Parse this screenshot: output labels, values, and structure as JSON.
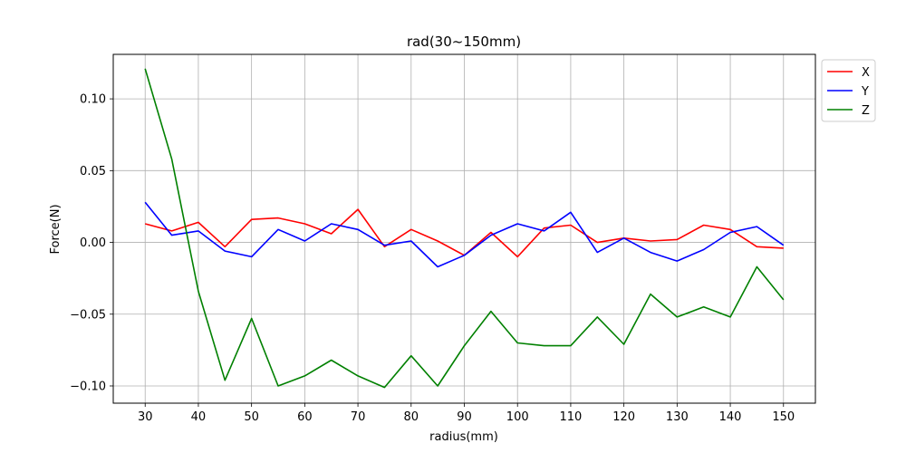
{
  "chart_data": {
    "type": "line",
    "title": "rad(30~150mm)",
    "xlabel": "radius(mm)",
    "ylabel": "Force(N)",
    "xlim": [
      24,
      156
    ],
    "ylim": [
      -0.112,
      0.131
    ],
    "xticks": [
      30,
      40,
      50,
      60,
      70,
      80,
      90,
      100,
      110,
      120,
      130,
      140,
      150
    ],
    "yticks": [
      -0.1,
      -0.05,
      0.0,
      0.05,
      0.1
    ],
    "ytick_labels": [
      "−0.10",
      "−0.05",
      "0.00",
      "0.05",
      "0.10"
    ],
    "grid": true,
    "legend_position": "outside-top-right",
    "x": [
      30,
      35,
      40,
      45,
      50,
      55,
      60,
      65,
      70,
      75,
      80,
      85,
      90,
      95,
      100,
      105,
      110,
      115,
      120,
      125,
      130,
      135,
      140,
      145,
      150
    ],
    "series": [
      {
        "name": "X",
        "color": "#ff0000",
        "values": [
          0.013,
          0.008,
          0.014,
          -0.003,
          0.016,
          0.017,
          0.013,
          0.006,
          0.023,
          -0.003,
          0.009,
          0.001,
          -0.009,
          0.007,
          -0.01,
          0.01,
          0.012,
          0.0,
          0.003,
          0.001,
          0.002,
          0.012,
          0.009,
          -0.003,
          -0.004
        ]
      },
      {
        "name": "Y",
        "color": "#0000ff",
        "values": [
          0.028,
          0.005,
          0.008,
          -0.006,
          -0.01,
          0.009,
          0.001,
          0.013,
          0.009,
          -0.002,
          0.001,
          -0.017,
          -0.009,
          0.005,
          0.013,
          0.008,
          0.021,
          -0.007,
          0.003,
          -0.007,
          -0.013,
          -0.005,
          0.007,
          0.011,
          -0.002
        ]
      },
      {
        "name": "Z",
        "color": "#008000",
        "values": [
          0.121,
          0.058,
          -0.034,
          -0.096,
          -0.053,
          -0.1,
          -0.093,
          -0.082,
          -0.093,
          -0.101,
          -0.079,
          -0.1,
          -0.072,
          -0.048,
          -0.07,
          -0.072,
          -0.072,
          -0.052,
          -0.071,
          -0.036,
          -0.052,
          -0.045,
          -0.052,
          -0.017,
          -0.04
        ]
      }
    ]
  }
}
